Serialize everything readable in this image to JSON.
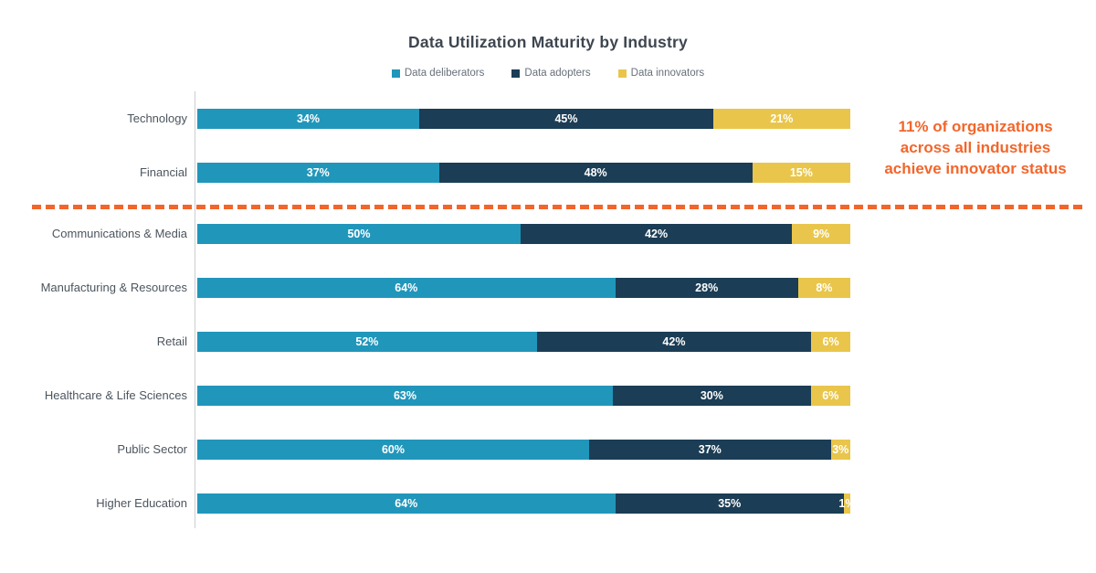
{
  "title": "Data Utilization Maturity by Industry",
  "legend": {
    "items": [
      {
        "label": "Data deliberators",
        "color": "#2196BB"
      },
      {
        "label": "Data adopters",
        "color": "#1B3D55"
      },
      {
        "label": "Data innovators",
        "color": "#E9C64B"
      }
    ]
  },
  "annotation": {
    "lines": [
      "11% of organizations",
      "across all industries",
      "achieve innovator status"
    ],
    "color": "#F2662B"
  },
  "divider": {
    "color": "#F2662B",
    "after_category": "Financial"
  },
  "chart_data": {
    "type": "bar",
    "stacked": true,
    "orientation": "horizontal",
    "title": "Data Utilization Maturity by Industry",
    "value_suffix": "%",
    "xlim": [
      0,
      100
    ],
    "grid": false,
    "legend_position": "top-center",
    "bar_labels_visible": true,
    "divider_after_index": 1,
    "categories": [
      "Technology",
      "Financial",
      "Communications & Media",
      "Manufacturing & Resources",
      "Retail",
      "Healthcare & Life Sciences",
      "Public Sector",
      "Higher Education"
    ],
    "series": [
      {
        "name": "Data deliberators",
        "color": "#2196BB",
        "values": [
          34,
          37,
          50,
          64,
          52,
          63,
          60,
          64
        ]
      },
      {
        "name": "Data adopters",
        "color": "#1B3D55",
        "values": [
          45,
          48,
          42,
          28,
          42,
          30,
          37,
          35
        ]
      },
      {
        "name": "Data innovators",
        "color": "#E9C64B",
        "values": [
          21,
          15,
          9,
          8,
          6,
          6,
          3,
          1
        ]
      }
    ]
  }
}
